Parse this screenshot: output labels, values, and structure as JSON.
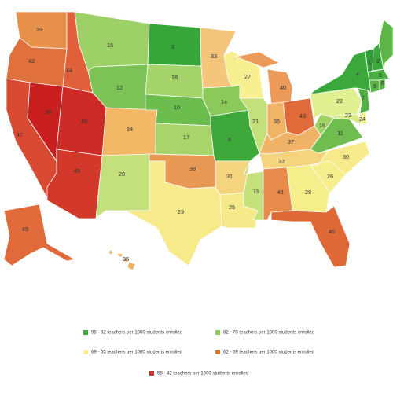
{
  "map": {
    "states": [
      {
        "label": 39,
        "color": "#e8914a"
      },
      {
        "label": 42,
        "color": "#e0703c"
      },
      {
        "label": 44,
        "color": "#e0603a"
      },
      {
        "label": 15,
        "color": "#9dd066"
      },
      {
        "label": 12,
        "color": "#7cc255"
      },
      {
        "label": 47,
        "color": "#d94a33"
      },
      {
        "label": 50,
        "color": "#c9201f"
      },
      {
        "label": 49,
        "color": "#cc2a24"
      },
      {
        "label": 48,
        "color": "#d3392a"
      },
      {
        "label": 34,
        "color": "#f2b866"
      },
      {
        "label": 20,
        "color": "#c3e07a"
      },
      {
        "label": 3,
        "color": "#37a63a"
      },
      {
        "label": 18,
        "color": "#a5d46a"
      },
      {
        "label": 10,
        "color": "#6bbd4e"
      },
      {
        "label": 17,
        "color": "#a8d56a"
      },
      {
        "label": 38,
        "color": "#e89a55"
      },
      {
        "label": 29,
        "color": "#f7ea8a"
      },
      {
        "label": 33,
        "color": "#f4c57a"
      },
      {
        "label": 14,
        "color": "#8bc95a"
      },
      {
        "label": 5,
        "color": "#3fa83b"
      },
      {
        "label": 31,
        "color": "#f5d47e"
      },
      {
        "label": 25,
        "color": "#f5ea8a"
      },
      {
        "label": 27,
        "color": "#f8f090"
      },
      {
        "label": 21,
        "color": "#c3e07a"
      },
      {
        "label": 19,
        "color": "#c5e17c"
      },
      {
        "label": 40,
        "color": "#ec9a5a"
      },
      {
        "label": 36,
        "color": "#f1b466"
      },
      {
        "label": 43,
        "color": "#e06a3a"
      },
      {
        "label": 37,
        "color": "#f0b266"
      },
      {
        "label": 32,
        "color": "#f5d47e"
      },
      {
        "label": 41,
        "color": "#e88a4a"
      },
      {
        "label": 28,
        "color": "#f5ee8a"
      },
      {
        "label": 46,
        "color": "#df6a38"
      },
      {
        "label": 26,
        "color": "#f5ee8a"
      },
      {
        "label": 30,
        "color": "#f7ea8a"
      },
      {
        "label": 11,
        "color": "#6fbd4e"
      },
      {
        "label": 16,
        "color": "#a0d266"
      },
      {
        "label": 22,
        "color": "#e0ef90"
      },
      {
        "label": 23,
        "color": "#dbeb8a"
      },
      {
        "label": 24,
        "color": "#e8ef90"
      },
      {
        "label": 7,
        "color": "#50b043"
      },
      {
        "label": 4,
        "color": "#3aa83a"
      },
      {
        "label": 1,
        "color": "#2e9e34"
      },
      {
        "label": 2,
        "color": "#3aa83a"
      },
      {
        "color": "#5db548"
      },
      {
        "label": 6,
        "color": "#4aae40"
      },
      {
        "label": 9,
        "color": "#5ab546"
      },
      {
        "label": 8,
        "color": "#55b244"
      },
      {
        "label": 45,
        "color": "#e06a3a"
      },
      {
        "label": 35,
        "color": "#f0b266"
      }
    ],
    "legend": [
      {
        "label": "98 - 82 teachers per 1000 students enrolled",
        "color": "#3aa83a"
      },
      {
        "label": "82 - 70 teachers per 1000 students enrolled",
        "color": "#8fcc5a"
      },
      {
        "label": "69 - 63 teachers per 1000 students enrolled",
        "color": "#f7ef8e"
      },
      {
        "label": "62 - 59 teachers per 1000 students enrolled",
        "color": "#d9702e"
      },
      {
        "label": "58 - 42 teachers per 1000 students enrolled",
        "color": "#d32f2a"
      }
    ]
  }
}
